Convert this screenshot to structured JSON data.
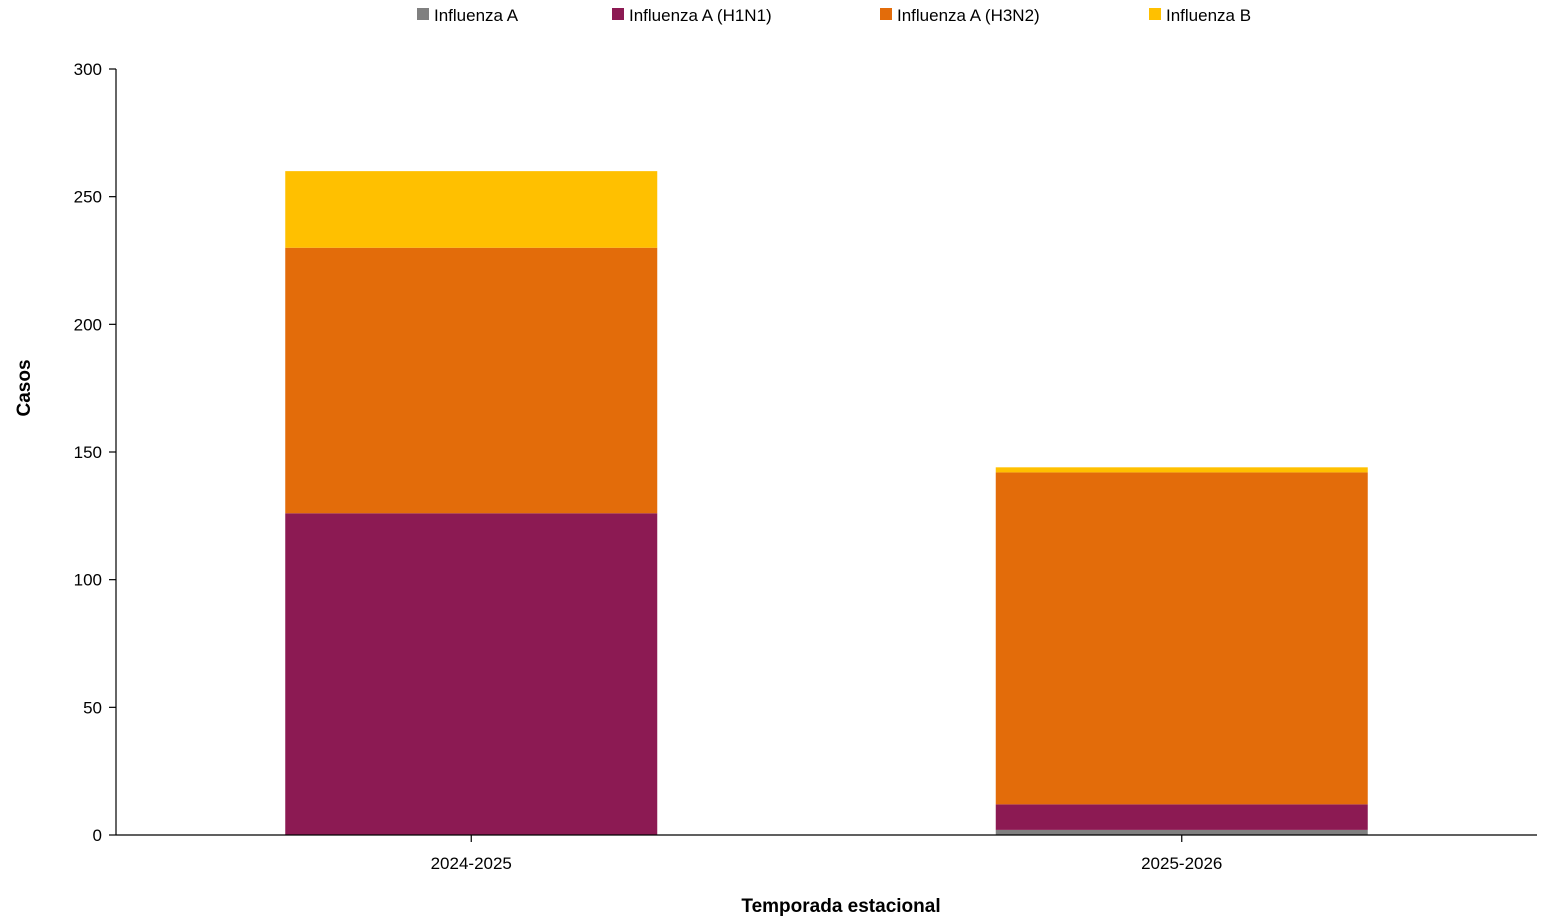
{
  "chart_data": {
    "type": "bar",
    "stacked": true,
    "categories": [
      "2024-2025",
      "2025-2026"
    ],
    "series": [
      {
        "name": "Influenza A",
        "color": "#808080",
        "values": [
          0,
          2
        ]
      },
      {
        "name": "Influenza A (H1N1)",
        "color": "#8C1A53",
        "values": [
          126,
          10
        ]
      },
      {
        "name": "Influenza A (H3N2)",
        "color": "#E36C0A",
        "values": [
          104,
          130
        ]
      },
      {
        "name": "Influenza B",
        "color": "#FFC000",
        "values": [
          30,
          2
        ]
      }
    ],
    "xlabel": "Temporada estacional",
    "ylabel": "Casos",
    "ylim": [
      0,
      300
    ],
    "yticks": [
      0,
      50,
      100,
      150,
      200,
      250,
      300
    ],
    "grid": false,
    "legend": "top-center"
  }
}
